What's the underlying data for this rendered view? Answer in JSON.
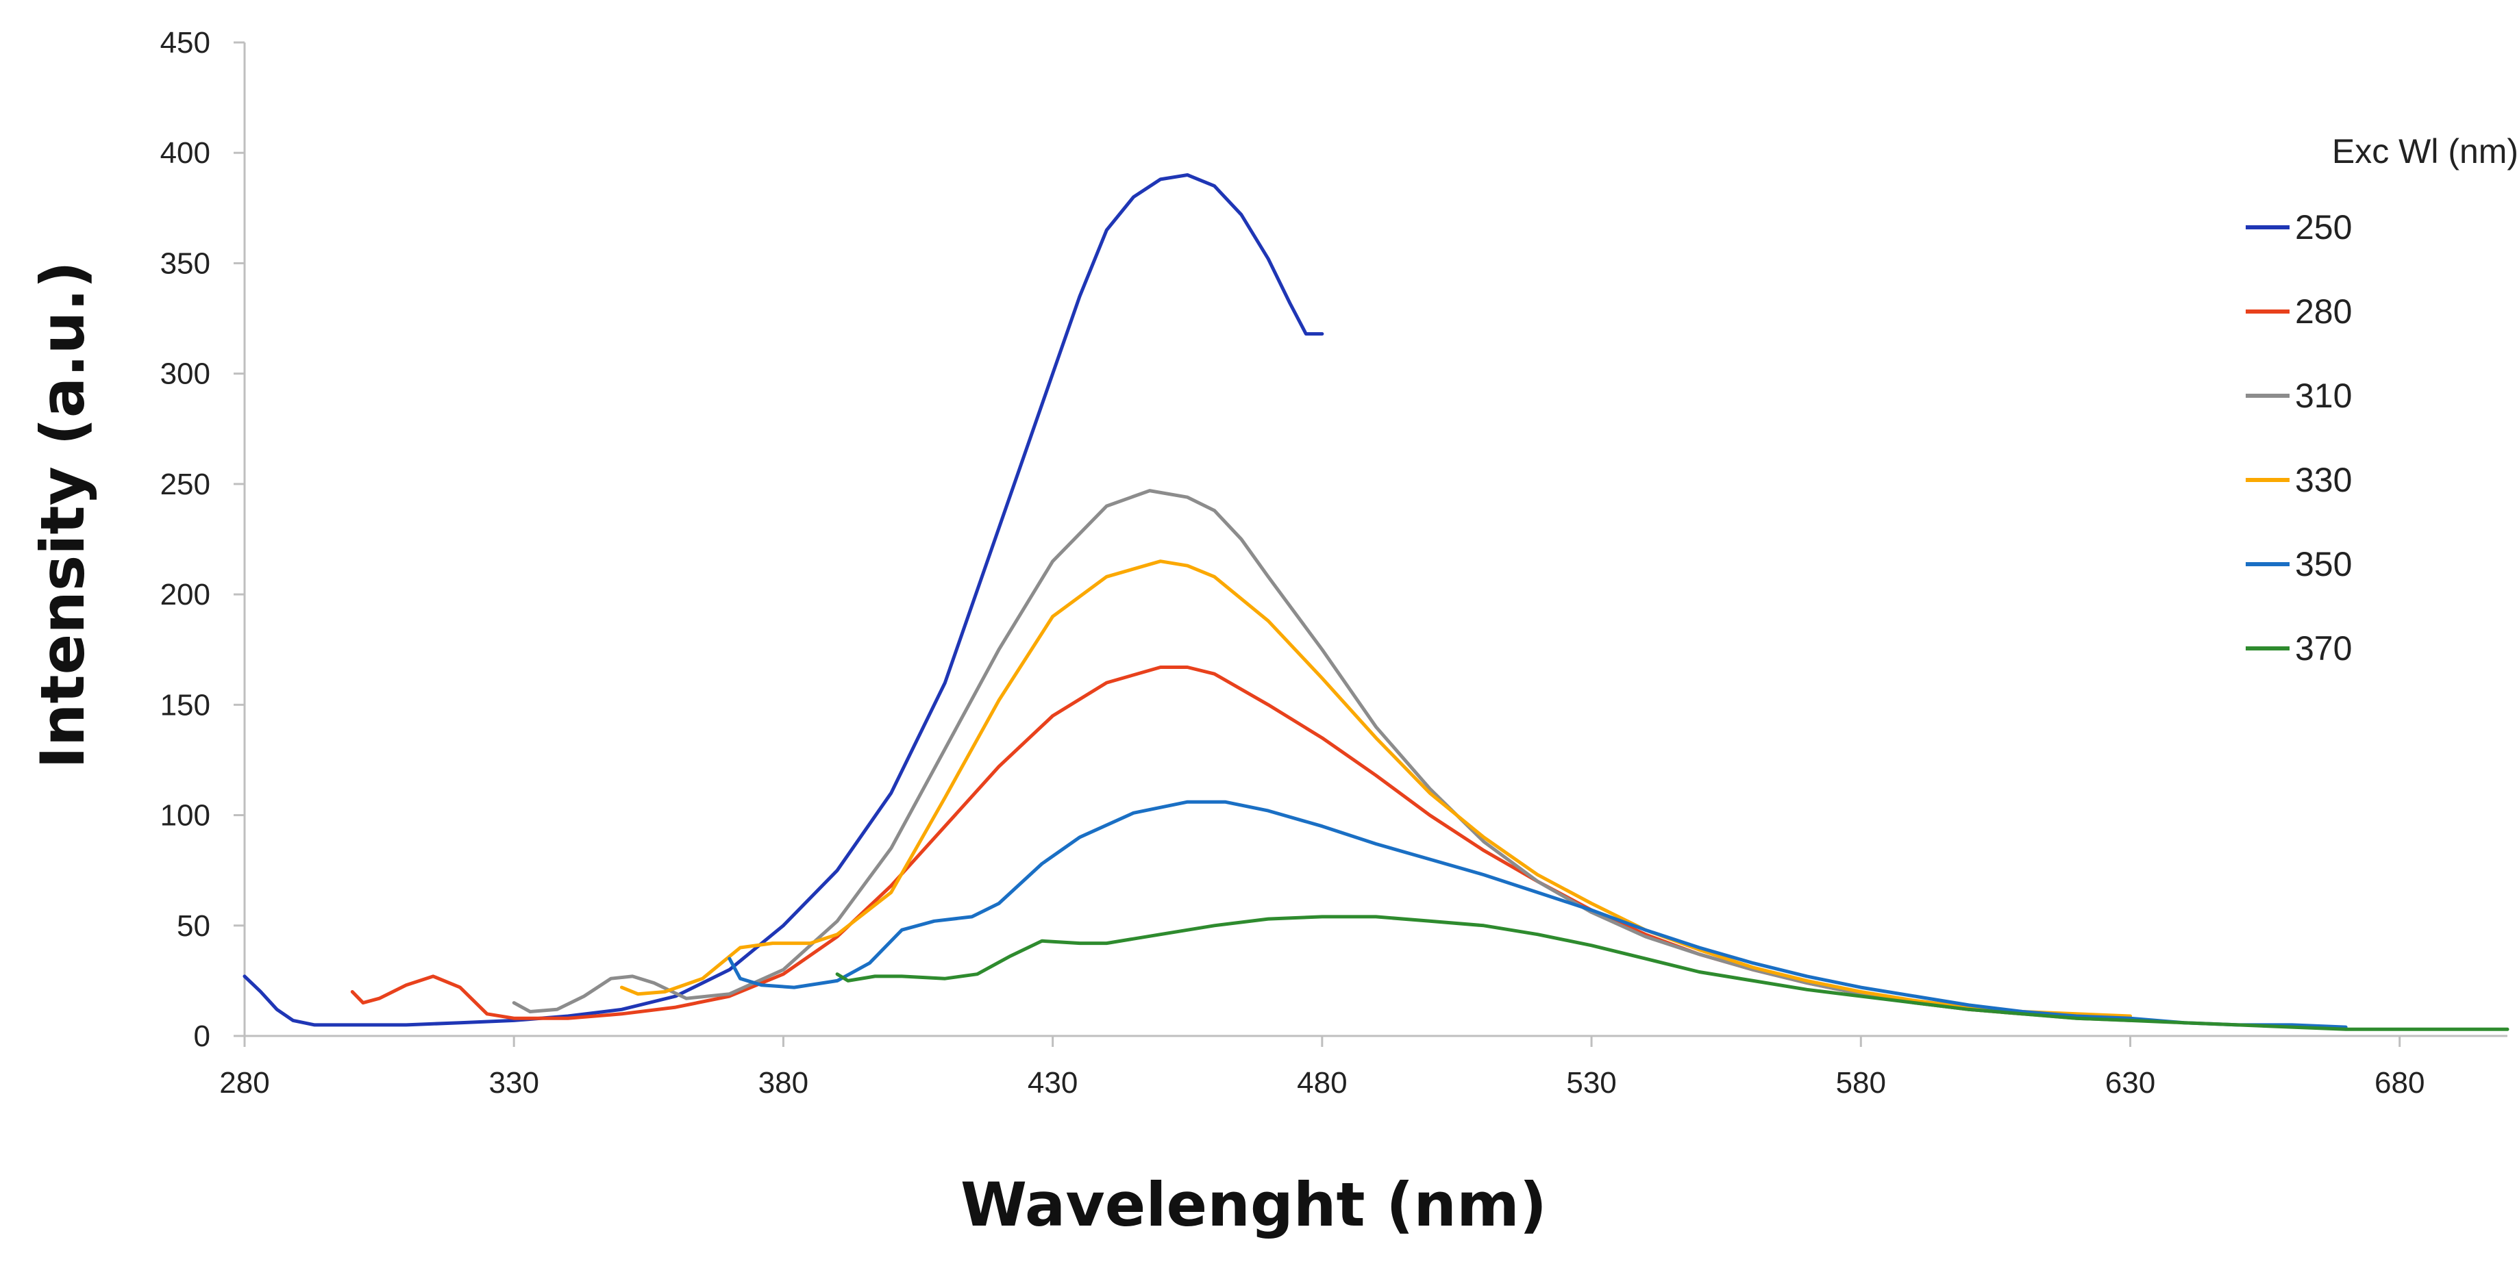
{
  "chart_data": {
    "type": "line",
    "title": "",
    "xlabel": "Wavelenght (nm)",
    "ylabel": "Intensity (a.u.)",
    "xlim": [
      280,
      700
    ],
    "ylim": [
      0,
      450
    ],
    "xticks": [
      280,
      330,
      380,
      430,
      480,
      530,
      580,
      630,
      680
    ],
    "yticks": [
      0,
      50,
      100,
      150,
      200,
      250,
      300,
      350,
      400,
      450
    ],
    "grid": false,
    "legend": {
      "title": "Exc Wl (nm)",
      "position": "top-right"
    },
    "series": [
      {
        "name": "250",
        "color": "#1f36b5",
        "points": [
          [
            280,
            27
          ],
          [
            283,
            20
          ],
          [
            286,
            12
          ],
          [
            289,
            7
          ],
          [
            293,
            5
          ],
          [
            300,
            5
          ],
          [
            310,
            5
          ],
          [
            320,
            6
          ],
          [
            330,
            7
          ],
          [
            340,
            9
          ],
          [
            350,
            12
          ],
          [
            360,
            18
          ],
          [
            370,
            30
          ],
          [
            380,
            50
          ],
          [
            390,
            75
          ],
          [
            400,
            110
          ],
          [
            410,
            160
          ],
          [
            420,
            230
          ],
          [
            430,
            300
          ],
          [
            435,
            335
          ],
          [
            440,
            365
          ],
          [
            445,
            380
          ],
          [
            450,
            388
          ],
          [
            455,
            390
          ],
          [
            460,
            385
          ],
          [
            465,
            372
          ],
          [
            470,
            352
          ],
          [
            474,
            332
          ],
          [
            477,
            318
          ],
          [
            480,
            318
          ]
        ]
      },
      {
        "name": "280",
        "color": "#e8411c",
        "points": [
          [
            300,
            20
          ],
          [
            302,
            15
          ],
          [
            305,
            17
          ],
          [
            310,
            23
          ],
          [
            315,
            27
          ],
          [
            320,
            22
          ],
          [
            325,
            10
          ],
          [
            330,
            8
          ],
          [
            340,
            8
          ],
          [
            350,
            10
          ],
          [
            360,
            13
          ],
          [
            370,
            18
          ],
          [
            380,
            28
          ],
          [
            390,
            45
          ],
          [
            400,
            68
          ],
          [
            410,
            95
          ],
          [
            420,
            122
          ],
          [
            430,
            145
          ],
          [
            440,
            160
          ],
          [
            450,
            167
          ],
          [
            455,
            167
          ],
          [
            460,
            164
          ],
          [
            470,
            150
          ],
          [
            480,
            135
          ],
          [
            490,
            118
          ],
          [
            500,
            100
          ],
          [
            510,
            84
          ],
          [
            520,
            70
          ],
          [
            530,
            57
          ],
          [
            540,
            46
          ],
          [
            550,
            37
          ],
          [
            560,
            30
          ],
          [
            570,
            24
          ],
          [
            580,
            19
          ],
          [
            590,
            15
          ],
          [
            600,
            12
          ],
          [
            610,
            10
          ],
          [
            620,
            9
          ],
          [
            630,
            8
          ]
        ]
      },
      {
        "name": "310",
        "color": "#8c8c8c",
        "points": [
          [
            330,
            15
          ],
          [
            333,
            11
          ],
          [
            338,
            12
          ],
          [
            343,
            18
          ],
          [
            348,
            26
          ],
          [
            352,
            27
          ],
          [
            356,
            24
          ],
          [
            362,
            17
          ],
          [
            370,
            19
          ],
          [
            380,
            30
          ],
          [
            390,
            52
          ],
          [
            400,
            85
          ],
          [
            410,
            130
          ],
          [
            420,
            175
          ],
          [
            430,
            215
          ],
          [
            440,
            240
          ],
          [
            448,
            247
          ],
          [
            455,
            244
          ],
          [
            460,
            238
          ],
          [
            465,
            225
          ],
          [
            470,
            208
          ],
          [
            480,
            175
          ],
          [
            490,
            140
          ],
          [
            500,
            112
          ],
          [
            510,
            88
          ],
          [
            520,
            70
          ],
          [
            530,
            56
          ],
          [
            540,
            45
          ],
          [
            550,
            37
          ],
          [
            560,
            30
          ],
          [
            570,
            24
          ],
          [
            580,
            19
          ],
          [
            590,
            15
          ],
          [
            600,
            12
          ],
          [
            610,
            10
          ],
          [
            620,
            8
          ],
          [
            630,
            7
          ]
        ]
      },
      {
        "name": "330",
        "color": "#fba800",
        "points": [
          [
            350,
            22
          ],
          [
            353,
            19
          ],
          [
            358,
            20
          ],
          [
            365,
            26
          ],
          [
            372,
            40
          ],
          [
            378,
            42
          ],
          [
            385,
            42
          ],
          [
            390,
            46
          ],
          [
            400,
            65
          ],
          [
            410,
            108
          ],
          [
            420,
            152
          ],
          [
            430,
            190
          ],
          [
            440,
            208
          ],
          [
            450,
            215
          ],
          [
            455,
            213
          ],
          [
            460,
            208
          ],
          [
            470,
            188
          ],
          [
            480,
            162
          ],
          [
            490,
            135
          ],
          [
            500,
            110
          ],
          [
            510,
            90
          ],
          [
            520,
            73
          ],
          [
            530,
            60
          ],
          [
            540,
            48
          ],
          [
            550,
            39
          ],
          [
            560,
            31
          ],
          [
            570,
            25
          ],
          [
            580,
            20
          ],
          [
            590,
            16
          ],
          [
            600,
            13
          ],
          [
            610,
            11
          ],
          [
            620,
            10
          ],
          [
            630,
            9
          ]
        ]
      },
      {
        "name": "350",
        "color": "#1a6fc4",
        "points": [
          [
            370,
            35
          ],
          [
            372,
            26
          ],
          [
            376,
            23
          ],
          [
            382,
            22
          ],
          [
            390,
            25
          ],
          [
            396,
            33
          ],
          [
            402,
            48
          ],
          [
            408,
            52
          ],
          [
            415,
            54
          ],
          [
            420,
            60
          ],
          [
            428,
            78
          ],
          [
            435,
            90
          ],
          [
            445,
            101
          ],
          [
            455,
            106
          ],
          [
            462,
            106
          ],
          [
            470,
            102
          ],
          [
            480,
            95
          ],
          [
            490,
            87
          ],
          [
            500,
            80
          ],
          [
            510,
            73
          ],
          [
            520,
            65
          ],
          [
            530,
            57
          ],
          [
            540,
            48
          ],
          [
            550,
            40
          ],
          [
            560,
            33
          ],
          [
            570,
            27
          ],
          [
            580,
            22
          ],
          [
            590,
            18
          ],
          [
            600,
            14
          ],
          [
            610,
            11
          ],
          [
            620,
            9
          ],
          [
            630,
            8
          ],
          [
            640,
            6
          ],
          [
            650,
            5
          ],
          [
            660,
            5
          ],
          [
            670,
            4
          ]
        ]
      },
      {
        "name": "370",
        "color": "#2e8b2e",
        "points": [
          [
            390,
            28
          ],
          [
            392,
            25
          ],
          [
            397,
            27
          ],
          [
            402,
            27
          ],
          [
            410,
            26
          ],
          [
            416,
            28
          ],
          [
            422,
            36
          ],
          [
            428,
            43
          ],
          [
            435,
            42
          ],
          [
            440,
            42
          ],
          [
            450,
            46
          ],
          [
            460,
            50
          ],
          [
            470,
            53
          ],
          [
            480,
            54
          ],
          [
            490,
            54
          ],
          [
            500,
            52
          ],
          [
            510,
            50
          ],
          [
            520,
            46
          ],
          [
            530,
            41
          ],
          [
            540,
            35
          ],
          [
            550,
            29
          ],
          [
            560,
            25
          ],
          [
            570,
            21
          ],
          [
            580,
            18
          ],
          [
            590,
            15
          ],
          [
            600,
            12
          ],
          [
            610,
            10
          ],
          [
            620,
            8
          ],
          [
            630,
            7
          ],
          [
            640,
            6
          ],
          [
            650,
            5
          ],
          [
            660,
            4
          ],
          [
            670,
            3
          ],
          [
            680,
            3
          ],
          [
            690,
            3
          ],
          [
            700,
            3
          ]
        ]
      }
    ]
  }
}
